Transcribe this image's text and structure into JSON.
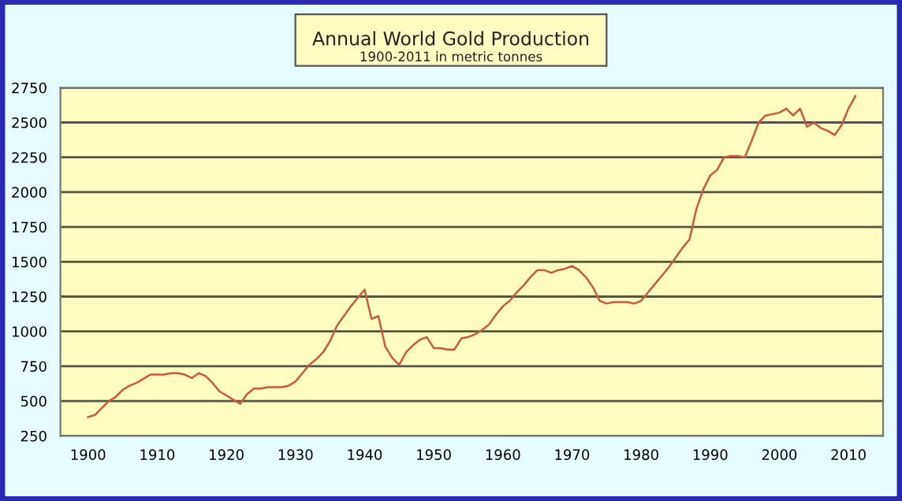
{
  "chart_data": {
    "type": "line",
    "title": "Annual World Gold Production",
    "subtitle": "1900-2011 in metric tonnes",
    "x": [
      1900,
      1901,
      1902,
      1903,
      1904,
      1905,
      1906,
      1907,
      1908,
      1909,
      1910,
      1911,
      1912,
      1913,
      1914,
      1915,
      1916,
      1917,
      1918,
      1919,
      1920,
      1921,
      1922,
      1923,
      1924,
      1925,
      1926,
      1927,
      1928,
      1929,
      1930,
      1931,
      1932,
      1933,
      1934,
      1935,
      1936,
      1937,
      1938,
      1939,
      1940,
      1941,
      1942,
      1943,
      1944,
      1945,
      1946,
      1947,
      1948,
      1949,
      1950,
      1951,
      1952,
      1953,
      1954,
      1955,
      1956,
      1957,
      1958,
      1959,
      1960,
      1961,
      1962,
      1963,
      1964,
      1965,
      1966,
      1967,
      1968,
      1969,
      1970,
      1971,
      1972,
      1973,
      1974,
      1975,
      1976,
      1977,
      1978,
      1979,
      1980,
      1981,
      1982,
      1983,
      1984,
      1985,
      1986,
      1987,
      1988,
      1989,
      1990,
      1991,
      1992,
      1993,
      1994,
      1995,
      1996,
      1997,
      1998,
      1999,
      2000,
      2001,
      2002,
      2003,
      2004,
      2005,
      2006,
      2007,
      2008,
      2009,
      2010,
      2011
    ],
    "series": [
      {
        "color": "#cc5a3a",
        "values": [
          385,
          400,
          450,
          500,
          530,
          580,
          610,
          630,
          660,
          690,
          690,
          690,
          700,
          700,
          690,
          665,
          700,
          680,
          630,
          570,
          540,
          510,
          480,
          550,
          590,
          590,
          600,
          600,
          600,
          610,
          640,
          700,
          760,
          800,
          850,
          930,
          1040,
          1110,
          1180,
          1240,
          1300,
          1090,
          1110,
          890,
          810,
          760,
          850,
          900,
          940,
          960,
          880,
          880,
          870,
          870,
          950,
          960,
          980,
          1010,
          1050,
          1120,
          1180,
          1220,
          1280,
          1330,
          1390,
          1440,
          1440,
          1420,
          1440,
          1450,
          1470,
          1440,
          1390,
          1320,
          1220,
          1200,
          1210,
          1210,
          1210,
          1200,
          1220,
          1280,
          1340,
          1400,
          1460,
          1530,
          1600,
          1660,
          1880,
          2020,
          2120,
          2160,
          2250,
          2260,
          2260,
          2250,
          2370,
          2500,
          2550,
          2560,
          2570,
          2600,
          2550,
          2600,
          2470,
          2500,
          2460,
          2440,
          2410,
          2480,
          2600,
          2690
        ]
      }
    ],
    "xlim": [
      1896,
      2015
    ],
    "ylim": [
      250,
      2750
    ],
    "xticks": [
      1900,
      1910,
      1920,
      1930,
      1940,
      1950,
      1960,
      1970,
      1980,
      1990,
      2000,
      2010
    ],
    "yticks": [
      250,
      500,
      750,
      1000,
      1250,
      1500,
      1750,
      2000,
      2250,
      2500,
      2750
    ],
    "grid": "y",
    "marker": "none",
    "line_style": "solid"
  }
}
